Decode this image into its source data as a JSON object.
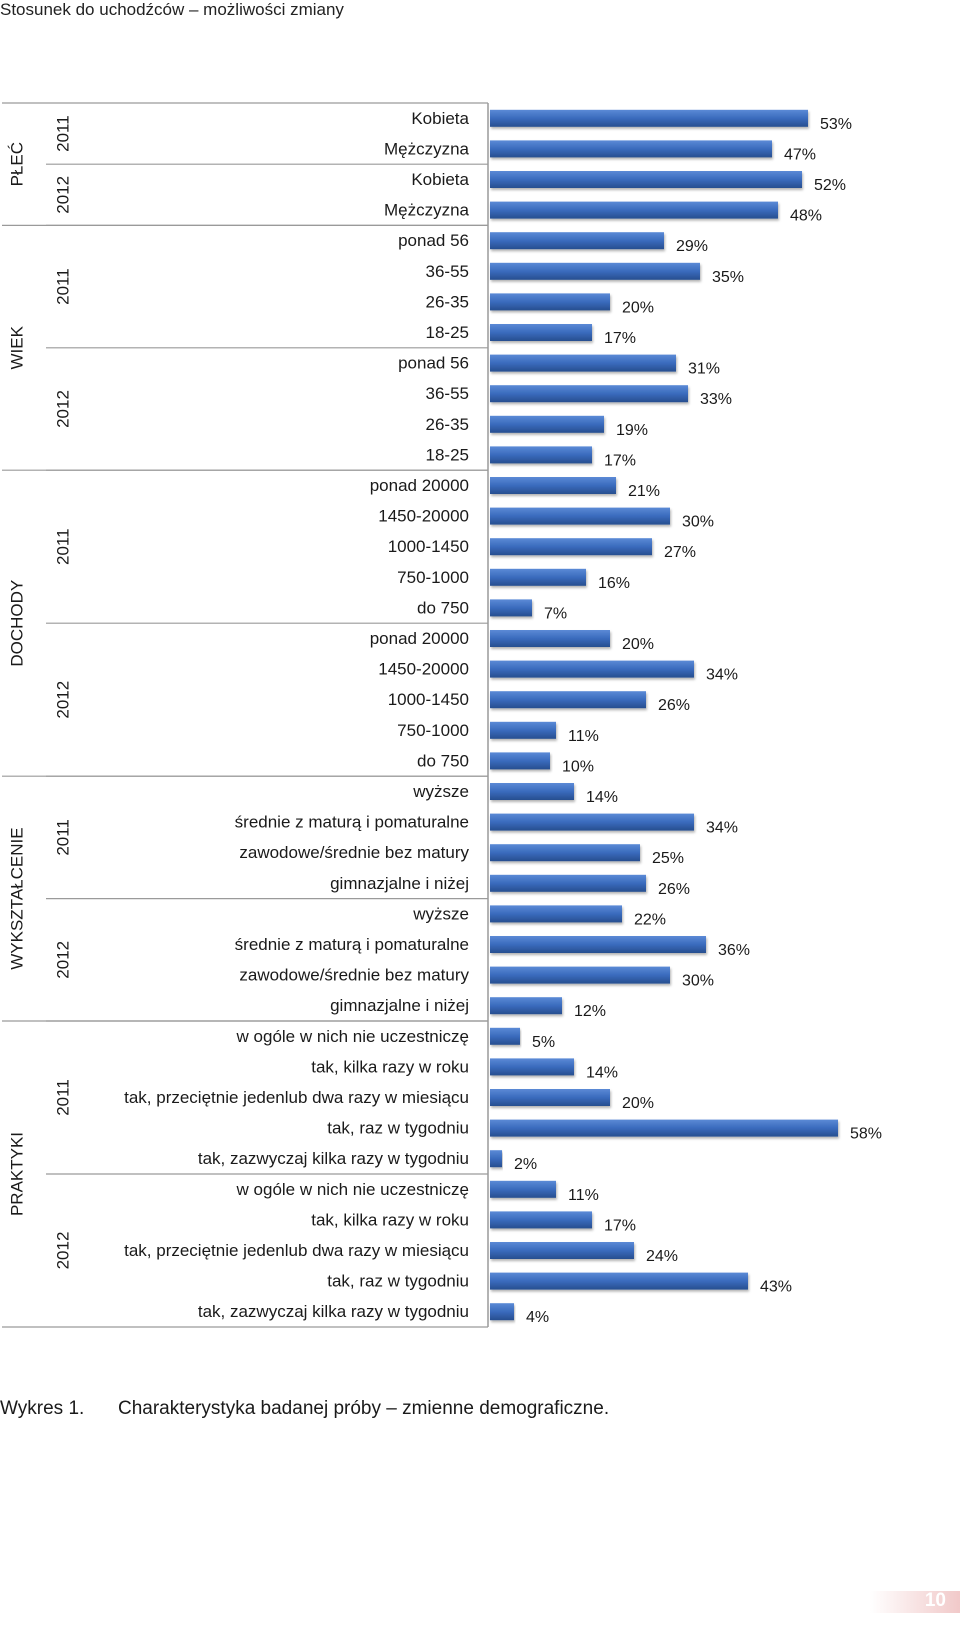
{
  "header": {
    "title": "Stosunek do uchodźców – możliwości zmiany"
  },
  "chart_data": {
    "type": "bar",
    "orientation": "horizontal",
    "colors": {
      "bar": "#3a6bbd",
      "bar_dark": "#274e8f",
      "axis": "#9a9a9a"
    },
    "xlim": [
      0,
      60
    ],
    "value_suffix": "%",
    "categories": [
      {
        "label": "Kobieta",
        "value": 53
      },
      {
        "label": "Mężczyzna",
        "value": 47
      },
      {
        "label": "Kobieta",
        "value": 52
      },
      {
        "label": "Mężczyzna",
        "value": 48
      },
      {
        "label": "ponad 56",
        "value": 29
      },
      {
        "label": "36-55",
        "value": 35
      },
      {
        "label": "26-35",
        "value": 20
      },
      {
        "label": "18-25",
        "value": 17
      },
      {
        "label": "ponad 56",
        "value": 31
      },
      {
        "label": "36-55",
        "value": 33
      },
      {
        "label": "26-35",
        "value": 19
      },
      {
        "label": "18-25",
        "value": 17
      },
      {
        "label": "ponad 20000",
        "value": 21
      },
      {
        "label": "1450-20000",
        "value": 30
      },
      {
        "label": "1000-1450",
        "value": 27
      },
      {
        "label": "750-1000",
        "value": 16
      },
      {
        "label": "do 750",
        "value": 7
      },
      {
        "label": "ponad 20000",
        "value": 20
      },
      {
        "label": "1450-20000",
        "value": 34
      },
      {
        "label": "1000-1450",
        "value": 26
      },
      {
        "label": "750-1000",
        "value": 11
      },
      {
        "label": "do 750",
        "value": 10
      },
      {
        "label": "wyższe",
        "value": 14
      },
      {
        "label": "średnie z maturą i pomaturalne",
        "value": 34
      },
      {
        "label": "zawodowe/średnie bez matury",
        "value": 25
      },
      {
        "label": "gimnazjalne i niżej",
        "value": 26
      },
      {
        "label": "wyższe",
        "value": 22
      },
      {
        "label": "średnie z maturą i pomaturalne",
        "value": 36
      },
      {
        "label": "zawodowe/średnie bez matury",
        "value": 30
      },
      {
        "label": "gimnazjalne i niżej",
        "value": 12
      },
      {
        "label": "w ogóle w nich nie uczestniczę",
        "value": 5
      },
      {
        "label": "tak, kilka razy w roku",
        "value": 14
      },
      {
        "label": "tak, przeciętnie jedenlub dwa razy w miesiącu",
        "value": 20
      },
      {
        "label": "tak, raz w tygodniu",
        "value": 58
      },
      {
        "label": "tak, zazwyczaj kilka razy w tygodniu",
        "value": 2
      },
      {
        "label": "w ogóle w nich nie uczestniczę",
        "value": 11
      },
      {
        "label": "tak, kilka razy w roku",
        "value": 17
      },
      {
        "label": "tak, przeciętnie jedenlub dwa razy w miesiącu",
        "value": 24
      },
      {
        "label": "tak, raz w tygodniu",
        "value": 43
      },
      {
        "label": "tak, zazwyczaj kilka razy w tygodniu",
        "value": 4
      }
    ],
    "outer_groups": [
      {
        "label": "PŁEĆ",
        "count": 4
      },
      {
        "label": "WIEK",
        "count": 8
      },
      {
        "label": "DOCHODY",
        "count": 10
      },
      {
        "label": "WYKSZTAŁCENIE",
        "count": 8
      },
      {
        "label": "PRAKTYKI",
        "count": 10
      }
    ],
    "year_groups": [
      {
        "label": "2011",
        "count": 2
      },
      {
        "label": "2012",
        "count": 2
      },
      {
        "label": "2011",
        "count": 4
      },
      {
        "label": "2012",
        "count": 4
      },
      {
        "label": "2011",
        "count": 5
      },
      {
        "label": "2012",
        "count": 5
      },
      {
        "label": "2011",
        "count": 4
      },
      {
        "label": "2012",
        "count": 4
      },
      {
        "label": "2011",
        "count": 5
      },
      {
        "label": "2012",
        "count": 5
      }
    ]
  },
  "caption": {
    "number": "Wykres 1.",
    "text": "Charakterystyka badanej próby – zmienne demograficzne."
  },
  "footer": {
    "page_number": "10"
  }
}
